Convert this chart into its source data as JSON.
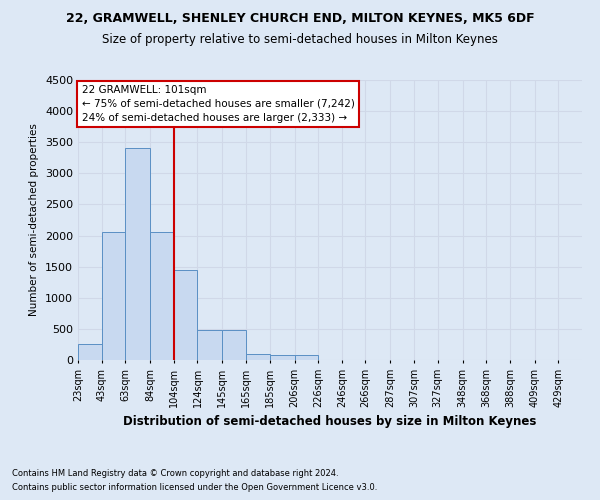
{
  "title1": "22, GRAMWELL, SHENLEY CHURCH END, MILTON KEYNES, MK5 6DF",
  "title2": "Size of property relative to semi-detached houses in Milton Keynes",
  "xlabel": "Distribution of semi-detached houses by size in Milton Keynes",
  "ylabel": "Number of semi-detached properties",
  "footnote1": "Contains HM Land Registry data © Crown copyright and database right 2024.",
  "footnote2": "Contains public sector information licensed under the Open Government Licence v3.0.",
  "annotation_title": "22 GRAMWELL: 101sqm",
  "annotation_line1": "← 75% of semi-detached houses are smaller (7,242)",
  "annotation_line2": "24% of semi-detached houses are larger (2,333) →",
  "bar_left_edges": [
    23,
    43,
    63,
    84,
    104,
    124,
    145,
    165,
    185,
    206,
    226,
    246,
    266,
    287,
    307,
    327,
    348,
    368,
    388,
    409
  ],
  "bar_heights": [
    250,
    2050,
    3400,
    2050,
    1450,
    475,
    475,
    100,
    75,
    75,
    0,
    0,
    0,
    0,
    0,
    0,
    0,
    0,
    0,
    0
  ],
  "bar_widths": [
    20,
    20,
    21,
    20,
    20,
    21,
    20,
    20,
    21,
    20,
    20,
    20,
    21,
    20,
    20,
    21,
    20,
    20,
    21,
    20
  ],
  "bar_color": "#c8d9f0",
  "bar_edge_color": "#5a8fc4",
  "red_line_x": 104,
  "ylim": [
    0,
    4500
  ],
  "yticks": [
    0,
    500,
    1000,
    1500,
    2000,
    2500,
    3000,
    3500,
    4000,
    4500
  ],
  "xtick_positions": [
    23,
    43,
    63,
    84,
    104,
    124,
    145,
    165,
    185,
    206,
    226,
    246,
    266,
    287,
    307,
    327,
    348,
    368,
    388,
    409,
    429
  ],
  "xtick_labels": [
    "23sqm",
    "43sqm",
    "63sqm",
    "84sqm",
    "104sqm",
    "124sqm",
    "145sqm",
    "165sqm",
    "185sqm",
    "206sqm",
    "226sqm",
    "246sqm",
    "266sqm",
    "287sqm",
    "307sqm",
    "327sqm",
    "348sqm",
    "368sqm",
    "388sqm",
    "409sqm",
    "429sqm"
  ],
  "grid_color": "#d0d8e8",
  "bg_color": "#dde8f5",
  "plot_bg_color": "#dde8f5",
  "annotation_box_color": "#ffffff",
  "annotation_box_edge": "#cc0000",
  "red_line_color": "#cc0000",
  "xlim_min": 23,
  "xlim_max": 449
}
